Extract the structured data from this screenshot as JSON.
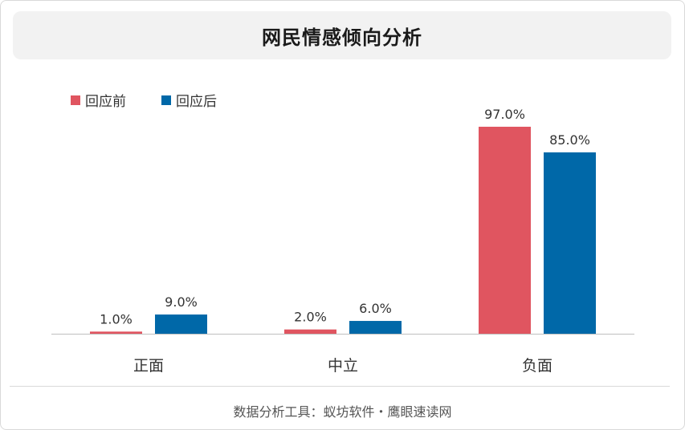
{
  "title": "网民情感倾向分析",
  "footer": "数据分析工具：蚁坊软件・鹰眼速读网",
  "colors": {
    "before": "#e05560",
    "after": "#0068a8",
    "axis": "#bfbfbf",
    "label": "#333333"
  },
  "chart_data": {
    "type": "bar",
    "categories": [
      "正面",
      "中立",
      "负面"
    ],
    "series": [
      {
        "name": "回应前",
        "values": [
          1.0,
          2.0,
          97.0
        ],
        "labels": [
          "1.0%",
          "2.0%",
          "97.0%"
        ]
      },
      {
        "name": "回应后",
        "values": [
          9.0,
          6.0,
          85.0
        ],
        "labels": [
          "9.0%",
          "6.0%",
          "85.0%"
        ]
      }
    ],
    "ylim": [
      0,
      100
    ],
    "grid": false,
    "legend_position": "top-left"
  }
}
